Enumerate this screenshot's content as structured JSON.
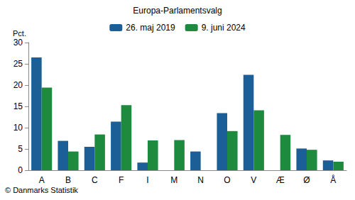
{
  "chart_data": {
    "type": "bar",
    "title": "Europa-Parlamentsvalg",
    "y_label": "Pct.",
    "source": "© Danmarks Statistik",
    "categories": [
      "A",
      "B",
      "C",
      "F",
      "I",
      "M",
      "N",
      "O",
      "V",
      "Æ",
      "Ø",
      "Å"
    ],
    "series": [
      {
        "name": "26. maj 2019",
        "color": "#1c5e96",
        "values": [
          26.5,
          6.9,
          5.5,
          11.4,
          1.8,
          null,
          4.4,
          13.4,
          22.4,
          null,
          5.1,
          2.3
        ]
      },
      {
        "name": "9. juni 2024",
        "color": "#1e8a3e",
        "values": [
          19.4,
          4.4,
          8.4,
          15.3,
          7.0,
          7.1,
          null,
          9.2,
          14.1,
          8.3,
          4.8,
          2.0
        ]
      }
    ],
    "ylim": [
      0,
      30
    ],
    "yticks": [
      0,
      5,
      10,
      15,
      20,
      25,
      30
    ],
    "grid": false,
    "legend": "top"
  }
}
